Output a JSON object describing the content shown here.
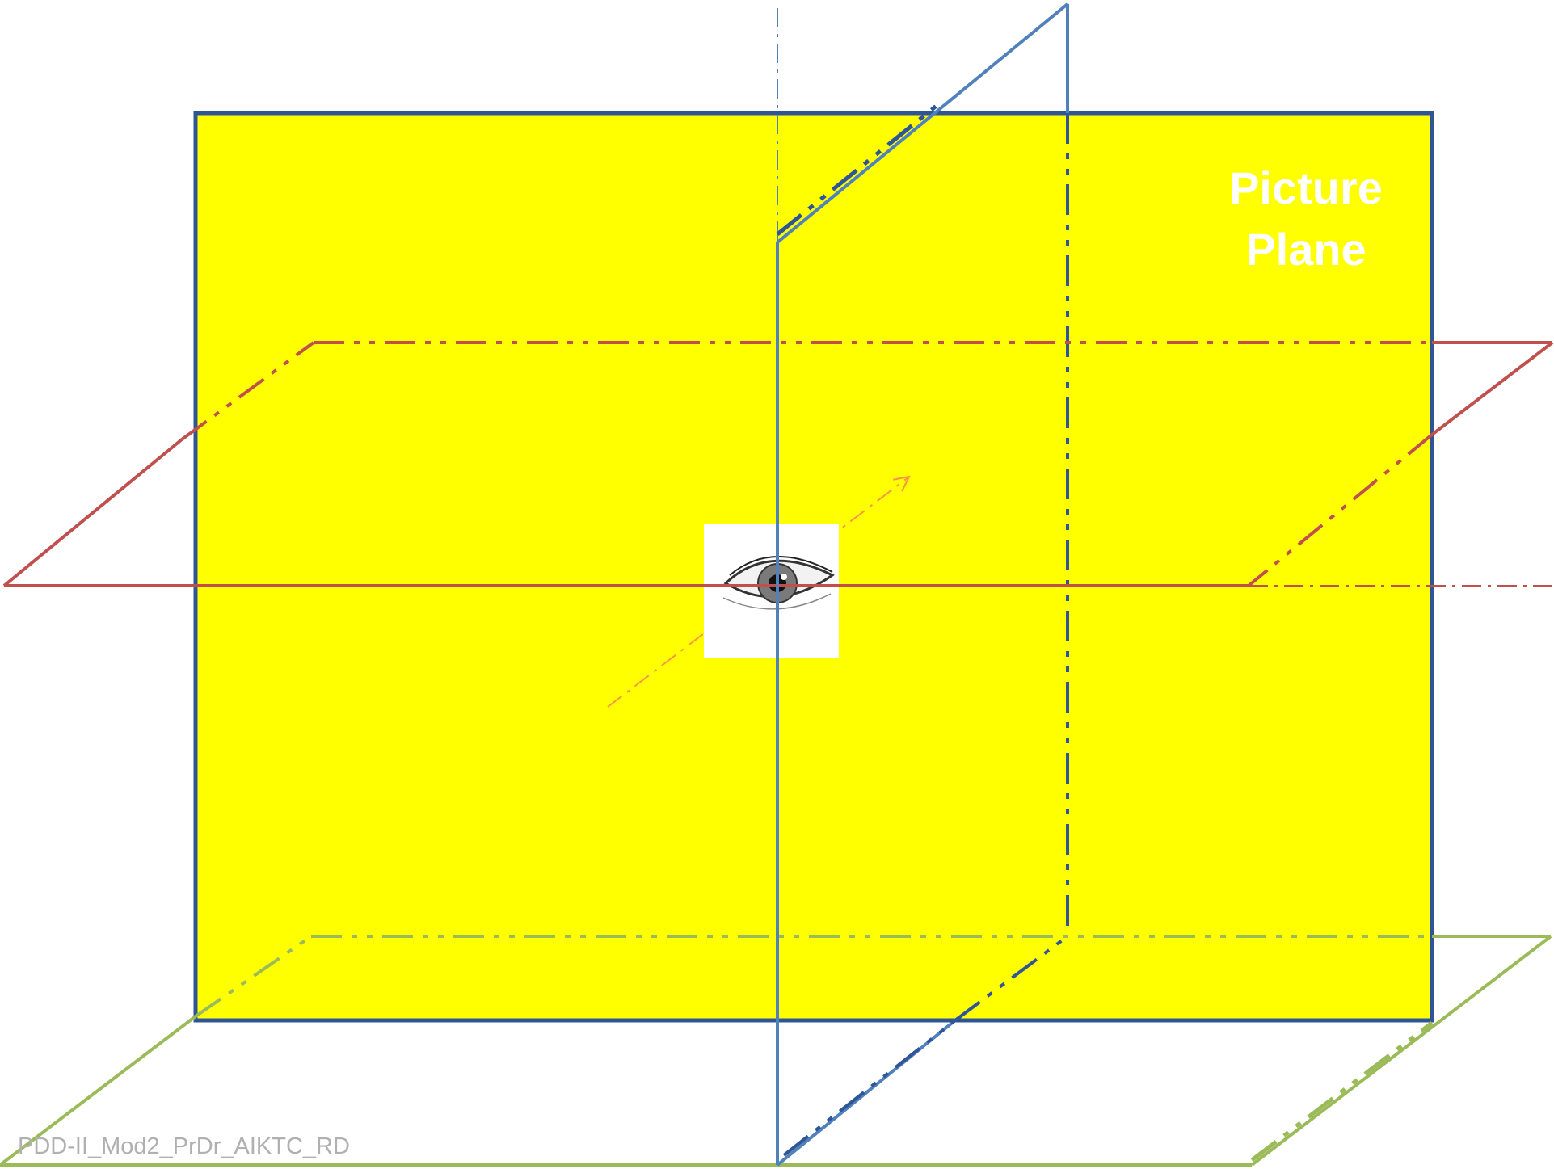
{
  "picture_plane": {
    "label_line1": "Picture",
    "label_line2": "Plane",
    "fill_color": "#ffff00",
    "border_color": "#2f5597"
  },
  "planes": {
    "horizontal_color": "#c0504d",
    "vertical_color": "#4f81bd",
    "ground_color": "#9bbb59",
    "sight_line_color": "#f79646"
  },
  "observer": {
    "icon": "eye-icon"
  },
  "footer": {
    "text": "PDD-II_Mod2_PrDr_AIKTC_RD"
  }
}
